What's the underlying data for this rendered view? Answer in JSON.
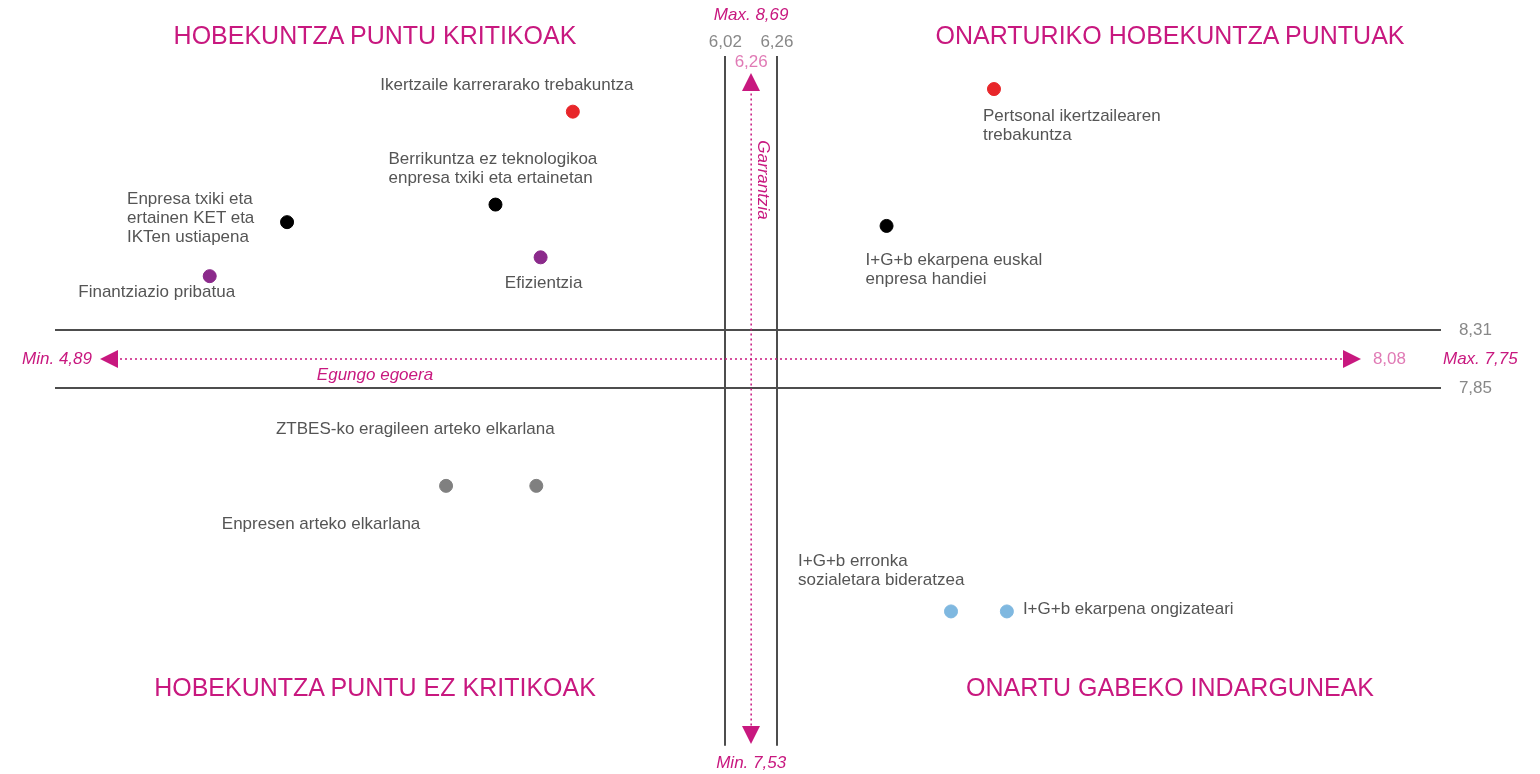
{
  "chart_data": {
    "type": "scatter",
    "xlabel": "Egungo egoera",
    "ylabel": "Garrantzia",
    "marker": "circle",
    "grid": true,
    "xticks": [
      {
        "value": 6.02,
        "label": "6,02"
      },
      {
        "value": 6.26,
        "label": "6,26"
      }
    ],
    "yticks": [
      {
        "value": 7.85,
        "label": "7,85"
      },
      {
        "value": 8.31,
        "label": "8,31"
      }
    ],
    "xlim": [
      2.9,
      9.35
    ],
    "ylim": [
      5.0,
      10.49
    ],
    "annotations": [
      "HOBEKUNTZA PUNTU KRITIKOAK",
      "ONARTURIKO HOBEKUNTZA PUNTUAK",
      "HOBEKUNTZA PUNTU EZ KRITIKOAK",
      "ONARTU GABEKO INDARGUNEAK",
      "Max. 8,69",
      "Min. 7,53",
      "Min. 4,89",
      "Max. 7,75",
      "6,26"
    ],
    "ref_lines": [
      {
        "axis": "y",
        "value": 8.08,
        "label": "8,08",
        "color": "#c8187f",
        "line_style": "dotted"
      },
      {
        "axis": "x",
        "value": 6.14,
        "color": "#c8187f",
        "line_style": "dotted"
      }
    ],
    "series": [
      {
        "name": "Ikertzaile karrerarako trebakuntza",
        "color": "#e8262a",
        "x": [
          5.31
        ],
        "values": [
          10.05
        ]
      },
      {
        "name": "Pertsonal ikertzailearen trebakuntza",
        "color": "#e8262a",
        "x": [
          7.27
        ],
        "values": [
          10.23
        ]
      },
      {
        "name": "Berrikuntza ez teknologikoa enpresa txiki eta ertainetan",
        "color": "#000000",
        "x": [
          4.95
        ],
        "values": [
          9.31
        ]
      },
      {
        "name": "Enpresa txiki eta ertainen KET eta IKTen ustiapena",
        "color": "#000000",
        "x": [
          3.98
        ],
        "values": [
          9.17
        ]
      },
      {
        "name": "Efizientzia",
        "color": "#8b2a8b",
        "x": [
          5.16
        ],
        "values": [
          8.89
        ]
      },
      {
        "name": "Finantziazio pribatua",
        "color": "#8b2a8b",
        "x": [
          3.62
        ],
        "values": [
          8.74
        ]
      },
      {
        "name": "I+G+b ekarpena euskal enpresa handiei",
        "color": "#000000",
        "x": [
          6.77
        ],
        "values": [
          9.14
        ]
      },
      {
        "name": "ZTBES-ko eragileen arteko elkarlana",
        "color": "#808080",
        "x": [
          5.14
        ],
        "values": [
          7.07
        ]
      },
      {
        "name": "Enpresen arteko elkarlana",
        "color": "#808080",
        "x": [
          4.72
        ],
        "values": [
          7.07
        ]
      },
      {
        "name": "I+G+b erronka sozialetara bideratzea",
        "color": "#7fb8e0",
        "x": [
          7.07
        ],
        "values": [
          6.07
        ]
      },
      {
        "name": "I+G+b ekarpena ongizateari",
        "color": "#7fb8e0",
        "x": [
          7.33
        ],
        "values": [
          6.07
        ]
      }
    ]
  }
}
